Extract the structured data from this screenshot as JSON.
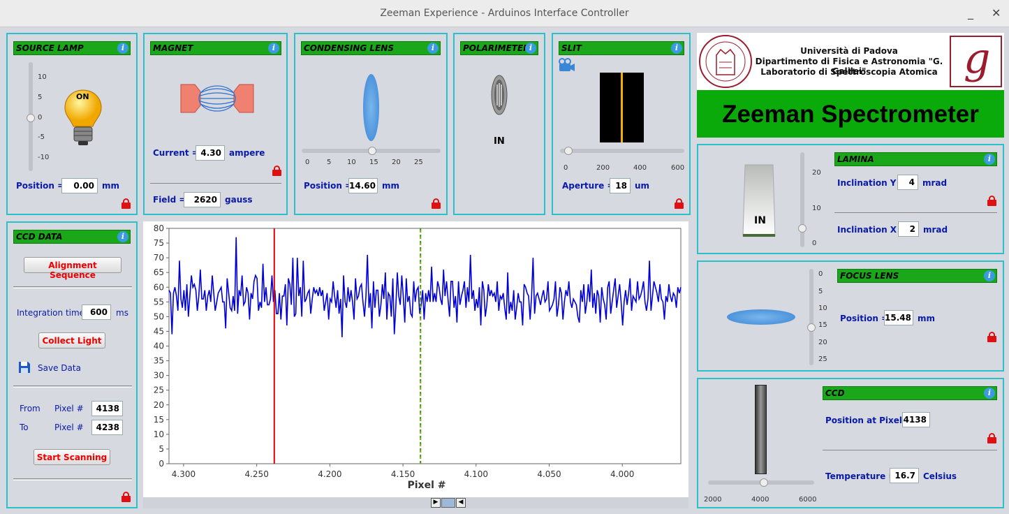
{
  "window": {
    "title": "Zeeman Experience - Arduinos Interface Controller",
    "minimize": "_",
    "close": "✕"
  },
  "source_lamp": {
    "title": "SOURCE LAMP",
    "ticks": [
      "10",
      "5",
      "0",
      "-5",
      "-10"
    ],
    "bulb_text": "ON",
    "position_label": "Position =",
    "position_value": "0.00",
    "unit": "mm"
  },
  "magnet": {
    "title": "MAGNET",
    "current_label": "Current =",
    "current_value": "4.30",
    "current_unit": "ampere",
    "field_label": "Field =",
    "field_value": "2620",
    "field_unit": "gauss"
  },
  "condensing_lens": {
    "title": "CONDENSING LENS",
    "ticks": [
      "0",
      "5",
      "10",
      "15",
      "20",
      "25"
    ],
    "position_label": "Position =",
    "position_value": "14.60",
    "unit": "mm",
    "slider_value": 14.6
  },
  "polarimeter": {
    "title": "POLARIMETER",
    "state": "IN"
  },
  "slit": {
    "title": "SLIT",
    "ticks": [
      "0",
      "200",
      "400",
      "600"
    ],
    "aperture_label": "Aperture =",
    "aperture_value": "18",
    "unit": "um"
  },
  "university": {
    "line1": "Università di Padova",
    "line2": "Dipartimento di Fisica e Astronomia \"G. Galilei\"",
    "line3": "Laboratorio di Spettroscopia Atomica",
    "logo_letter": "g"
  },
  "banner": {
    "title": "Zeeman Spectrometer"
  },
  "lamina": {
    "title": "LAMINA",
    "state": "IN",
    "ticks": [
      "20",
      "10",
      "0"
    ],
    "incl_y_label": "Inclination Y =",
    "incl_y_value": "4",
    "incl_x_label": "Inclination X =",
    "incl_x_value": "2",
    "unit": "mrad"
  },
  "focus_lens": {
    "title": "FOCUS LENS",
    "ticks": [
      "0",
      "5",
      "10",
      "15",
      "20",
      "25"
    ],
    "position_label": "Position =",
    "position_value": "15.48",
    "unit": "mm"
  },
  "ccd": {
    "title": "CCD",
    "pos_label": "Position at Pixel #",
    "pos_value": "4138",
    "temp_label": "Temperature =",
    "temp_value": "16.7",
    "temp_unit": "Celsius",
    "ticks": [
      "2000",
      "4000",
      "6000"
    ]
  },
  "ccd_data": {
    "title": "CCD DATA",
    "align_btn": "Alignment Sequence",
    "integ_label": "Integration time",
    "integ_value": "600",
    "integ_unit": "ms",
    "collect_btn": "Collect Light",
    "save_label": "Save Data",
    "from_label": "From",
    "to_label": "To",
    "pixel_label": "Pixel #",
    "from_value": "4138",
    "to_value": "4238",
    "scan_btn": "Start Scanning"
  },
  "chart_data": {
    "type": "line",
    "xlabel": "Pixel #",
    "ylabel": "",
    "xlim": [
      4.31,
      3.96
    ],
    "ylim": [
      0,
      80
    ],
    "yticks": [
      "0",
      "5",
      "10",
      "15",
      "20",
      "25",
      "30",
      "35",
      "40",
      "45",
      "50",
      "55",
      "60",
      "65",
      "70",
      "75",
      "80"
    ],
    "xticks": [
      "4.300",
      "4.250",
      "4.200",
      "4.150",
      "4.100",
      "4.050",
      "4.000"
    ],
    "markers": [
      {
        "x": 4.238,
        "color": "#e00000"
      },
      {
        "x": 4.138,
        "color": "#2a9a00"
      }
    ],
    "series": [
      {
        "values": [
          59,
          58,
          44,
          58,
          60,
          57,
          52,
          69,
          56,
          53,
          59,
          52,
          61,
          50,
          57,
          64,
          60,
          61,
          59,
          52,
          57,
          66,
          56,
          56,
          59,
          52,
          57,
          59,
          55,
          64,
          58,
          52,
          55,
          58,
          59,
          60,
          55,
          55,
          46,
          63,
          58,
          53,
          52,
          57,
          52,
          77,
          51,
          59,
          57,
          64,
          54,
          55,
          60,
          58,
          49,
          58,
          56,
          62,
          64,
          63,
          52,
          55,
          53,
          68,
          55,
          60,
          54,
          54,
          56,
          64,
          55,
          59,
          51,
          51,
          58,
          49,
          57,
          57,
          61,
          47,
          63,
          61,
          54,
          70,
          50,
          51,
          70,
          57,
          60,
          50,
          69,
          55,
          56,
          58,
          59,
          51,
          56,
          60,
          58,
          59,
          57,
          60,
          57,
          59,
          52,
          55,
          58,
          49,
          56,
          55,
          62,
          57,
          53,
          59,
          51,
          56,
          43,
          64,
          55,
          53,
          60,
          55,
          59,
          55,
          49,
          63,
          56,
          57,
          60,
          61,
          55,
          50,
          57,
          71,
          53,
          58,
          46,
          62,
          53,
          59,
          59,
          50,
          54,
          61,
          56,
          65,
          49,
          58,
          57,
          50,
          63,
          44,
          53,
          65,
          57,
          54,
          64,
          57,
          48,
          63,
          55,
          57,
          51,
          50,
          62,
          55,
          59,
          60,
          51,
          54,
          59,
          49,
          58,
          55,
          59,
          55,
          67,
          55,
          58,
          55,
          62,
          60,
          56,
          54,
          66,
          57,
          62,
          56,
          50,
          62,
          62,
          53,
          57,
          48,
          62,
          54,
          57,
          59,
          62,
          53,
          60,
          55,
          71,
          56,
          59,
          52,
          56,
          53,
          60,
          47,
          62,
          59,
          50,
          54,
          61,
          57,
          59,
          57,
          58,
          55,
          62,
          52,
          57,
          56,
          58,
          53,
          49,
          65,
          51,
          55,
          52,
          59,
          49,
          53,
          58,
          55,
          55,
          47,
          61,
          60,
          58,
          57,
          49,
          57,
          70,
          51,
          57,
          58,
          56,
          54,
          57,
          59,
          55,
          56,
          62,
          52,
          53,
          54,
          56,
          62,
          50,
          54,
          60,
          58,
          49,
          55,
          59,
          57,
          62,
          55,
          53,
          56,
          55,
          54,
          50,
          48,
          59,
          55,
          61,
          51,
          55,
          61,
          55,
          66,
          53,
          58,
          51,
          59,
          57,
          48,
          60,
          56,
          54,
          49,
          60,
          62,
          51,
          55,
          59,
          63,
          53,
          57,
          61,
          55,
          47,
          55,
          59,
          54,
          58,
          63,
          52,
          57,
          56,
          55,
          62,
          56,
          57,
          59,
          62,
          55,
          52,
          56,
          69,
          52,
          57,
          62,
          60,
          58,
          55,
          61,
          56,
          55,
          49,
          57,
          55,
          61,
          57,
          55,
          58,
          57,
          53,
          60,
          58,
          60
        ]
      }
    ]
  }
}
